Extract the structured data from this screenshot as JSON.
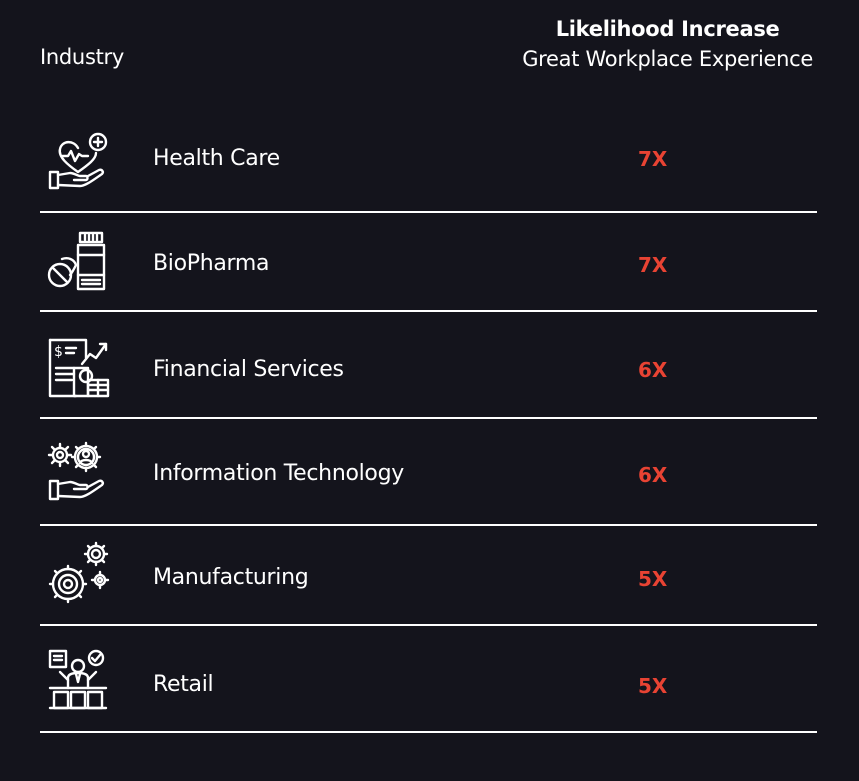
{
  "header": {
    "industry_label": "Industry",
    "metric_title": "Likelihood Increase",
    "metric_subtitle": "Great Workplace Experience"
  },
  "rows": [
    {
      "label": "Health Care",
      "value": "7X",
      "icon": "heart-health-icon"
    },
    {
      "label": "BioPharma",
      "value": "7X",
      "icon": "medicine-bottle-icon"
    },
    {
      "label": "Financial Services",
      "value": "6X",
      "icon": "finance-report-icon"
    },
    {
      "label": "Information Technology",
      "value": "6X",
      "icon": "gears-user-hand-icon"
    },
    {
      "label": "Manufacturing",
      "value": "5X",
      "icon": "gears-icon"
    },
    {
      "label": "Retail",
      "value": "5X",
      "icon": "retail-worker-icon"
    }
  ],
  "colors": {
    "background": "#14141c",
    "text": "#ffffff",
    "accent": "#e84333"
  }
}
